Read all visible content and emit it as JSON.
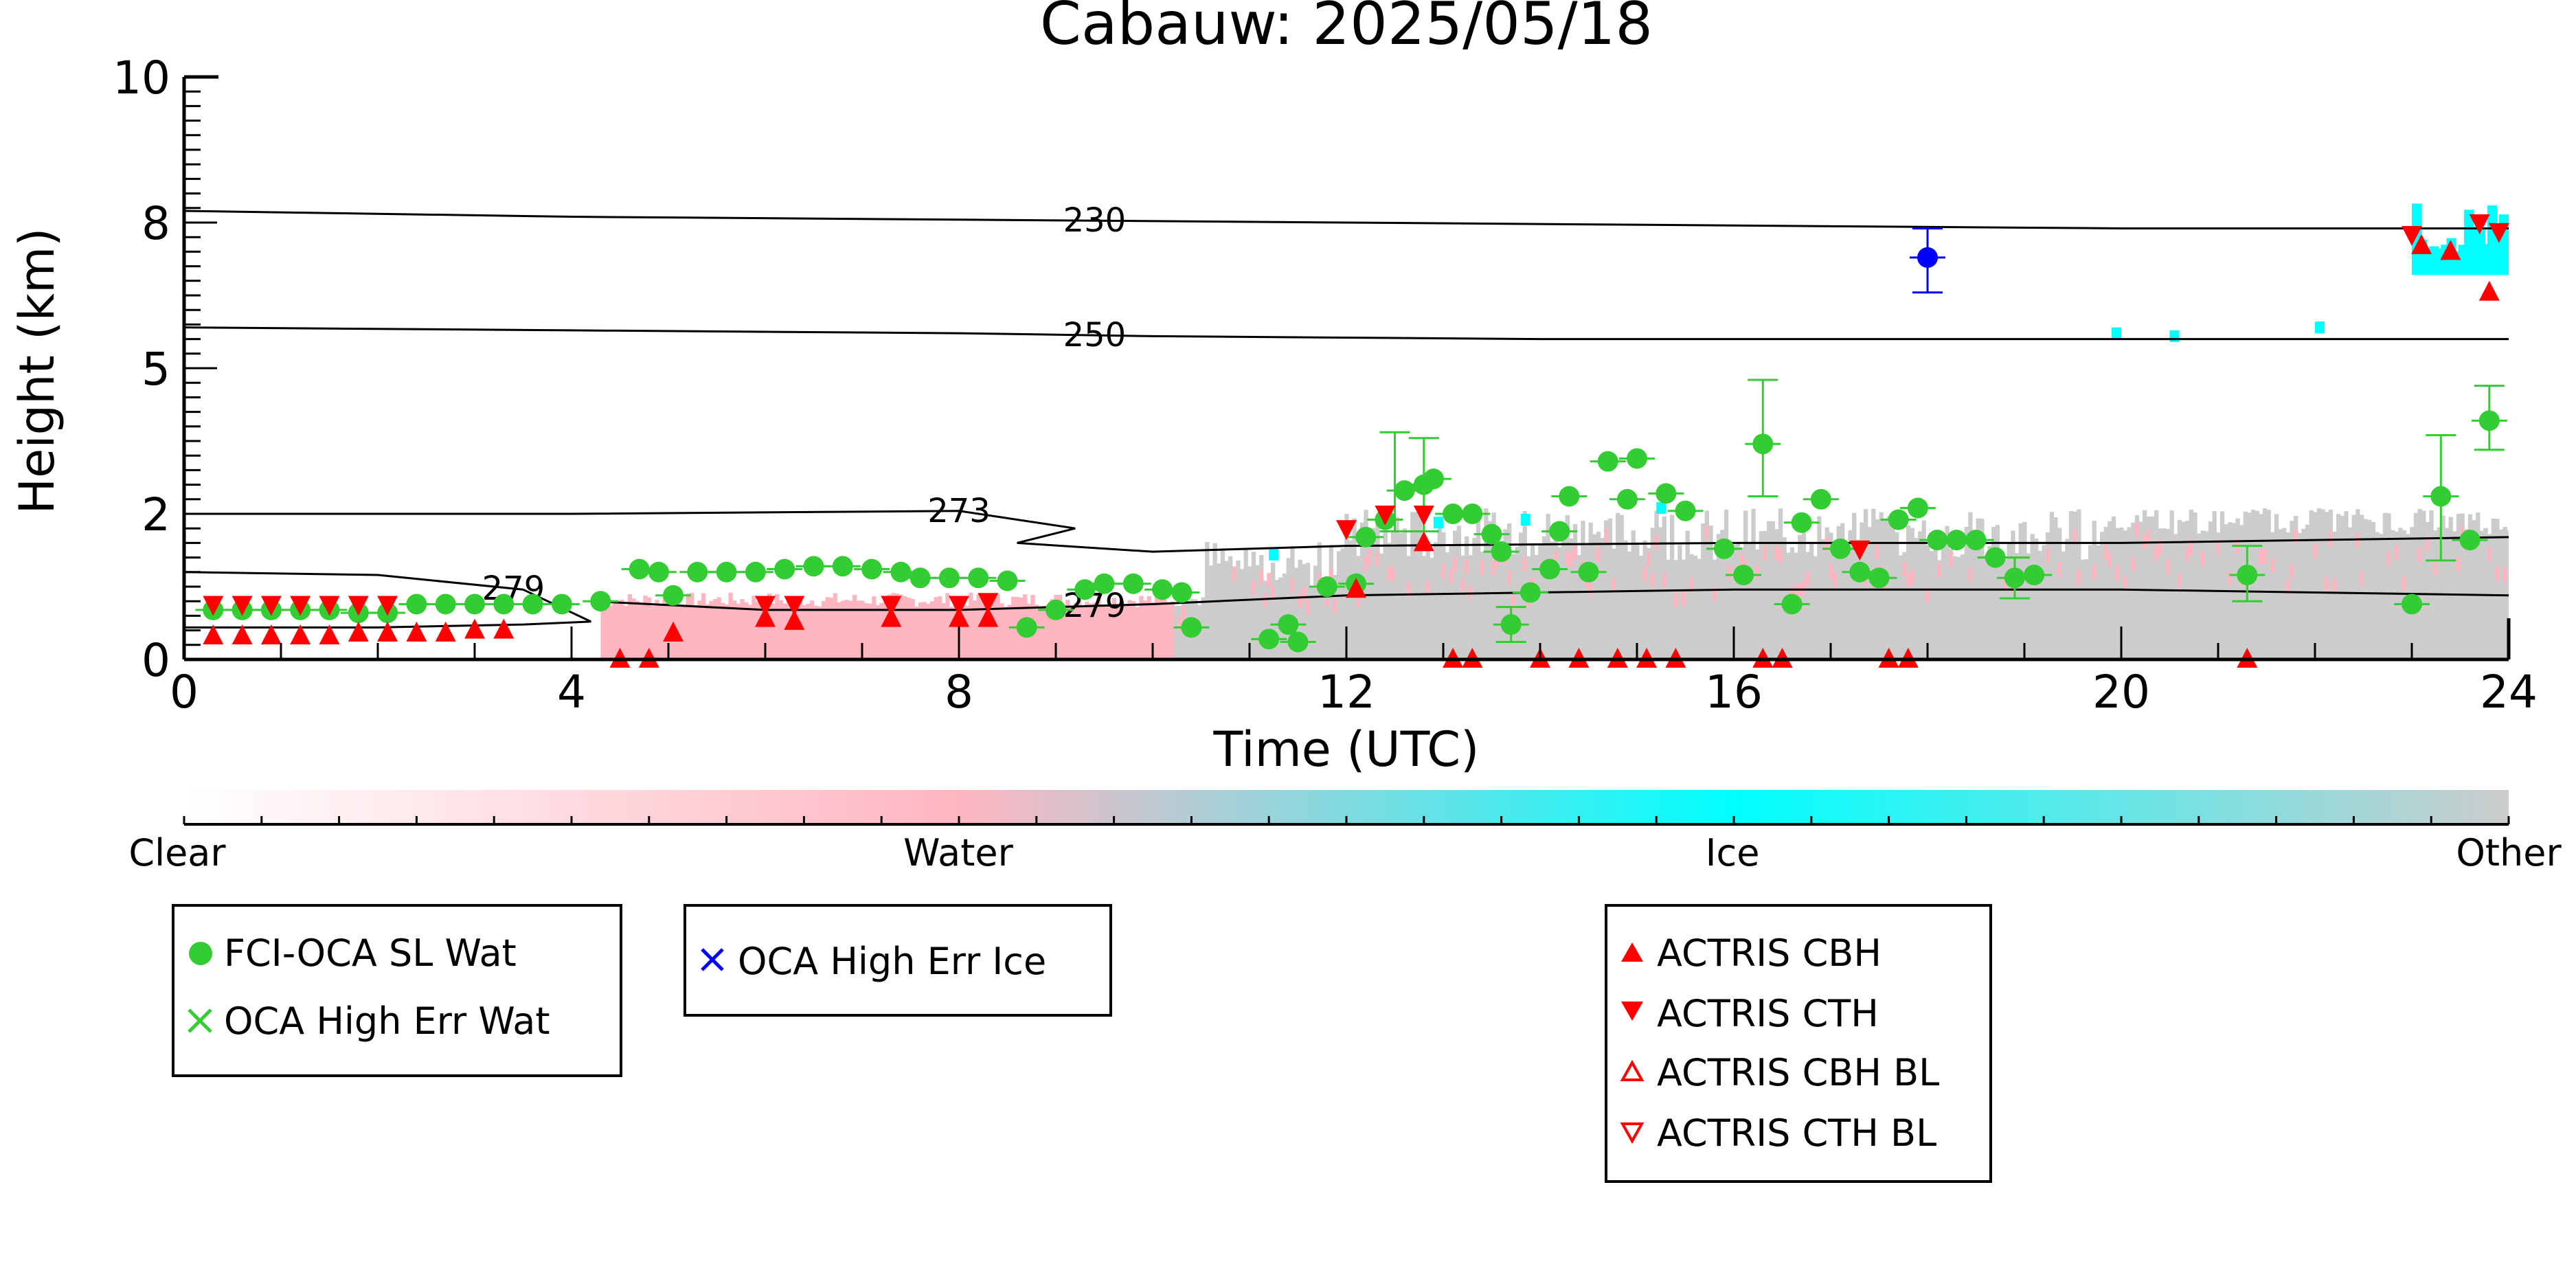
{
  "chart_data": {
    "type": "scatter",
    "title": "Cabauw: 2025/05/18",
    "xlabel": "Time (UTC)",
    "ylabel": "Height (km)",
    "xlim": [
      0,
      24
    ],
    "ylim": [
      0,
      10
    ],
    "x_ticks": [
      0,
      4,
      8,
      12,
      16,
      20,
      24
    ],
    "x_tick_labels": [
      "0",
      "4",
      "8",
      "12",
      "16",
      "20",
      "24"
    ],
    "y_ticks": [
      0,
      2.5,
      5,
      7.5,
      10
    ],
    "y_tick_labels": [
      "0",
      "2",
      "5",
      "8",
      "10"
    ],
    "background_field": "cloud classification shading (Clear / Water / Ice / Other)",
    "colorbar": {
      "labels": [
        "Clear",
        "Water",
        "Ice",
        "Other"
      ],
      "colors": [
        "#ffffff",
        "#ffb6c1",
        "#00ffff",
        "#cccccc"
      ]
    },
    "contours": [
      {
        "label": "230",
        "label_x": 9.4,
        "x": [
          0,
          4,
          8,
          12,
          16,
          20,
          24
        ],
        "y": [
          7.7,
          7.6,
          7.55,
          7.5,
          7.45,
          7.4,
          7.4
        ]
      },
      {
        "label": "250",
        "label_x": 9.4,
        "x": [
          0,
          4,
          8,
          10,
          14,
          18,
          24
        ],
        "y": [
          5.7,
          5.65,
          5.6,
          5.55,
          5.5,
          5.5,
          5.5
        ]
      },
      {
        "label": "273",
        "label_x": 8.0,
        "x": [
          0,
          4,
          8,
          9.2,
          8.6,
          10,
          12,
          16,
          20,
          24
        ],
        "y": [
          2.5,
          2.5,
          2.55,
          2.25,
          2.0,
          1.85,
          1.95,
          2.0,
          2.0,
          2.1
        ]
      },
      {
        "label": "279",
        "label_x": 3.4,
        "x": [
          0,
          2,
          3.5,
          4.2,
          3.5,
          2,
          0
        ],
        "y": [
          1.5,
          1.45,
          1.2,
          0.65,
          0.6,
          0.55,
          0.55
        ]
      },
      {
        "label": "279",
        "label_x": 9.4,
        "x": [
          4.2,
          6,
          8,
          10,
          12,
          16,
          20,
          24
        ],
        "y": [
          1.0,
          0.85,
          0.85,
          0.95,
          1.1,
          1.2,
          1.2,
          1.1
        ]
      }
    ],
    "series": [
      {
        "name": "FCI-OCA SL Wat",
        "marker": "circle",
        "color": "#33cc33",
        "points": [
          [
            0.3,
            0.85
          ],
          [
            0.6,
            0.85
          ],
          [
            0.9,
            0.85
          ],
          [
            1.2,
            0.85
          ],
          [
            1.5,
            0.85
          ],
          [
            1.8,
            0.8
          ],
          [
            2.1,
            0.8
          ],
          [
            2.4,
            0.95
          ],
          [
            2.7,
            0.95
          ],
          [
            3.0,
            0.95
          ],
          [
            3.3,
            0.95
          ],
          [
            3.6,
            0.95
          ],
          [
            3.9,
            0.95
          ],
          [
            4.3,
            1.0
          ],
          [
            4.7,
            1.55
          ],
          [
            4.9,
            1.5
          ],
          [
            5.05,
            1.1
          ],
          [
            5.3,
            1.5
          ],
          [
            5.6,
            1.5
          ],
          [
            5.9,
            1.5
          ],
          [
            6.2,
            1.55
          ],
          [
            6.5,
            1.6
          ],
          [
            6.8,
            1.6
          ],
          [
            7.1,
            1.55
          ],
          [
            7.4,
            1.5
          ],
          [
            7.6,
            1.4
          ],
          [
            7.9,
            1.4
          ],
          [
            8.2,
            1.4
          ],
          [
            8.5,
            1.35
          ],
          [
            8.7,
            0.55
          ],
          [
            9.0,
            0.85
          ],
          [
            9.3,
            1.2
          ],
          [
            9.5,
            1.3
          ],
          [
            9.8,
            1.3
          ],
          [
            10.1,
            1.2
          ],
          [
            10.3,
            1.15
          ],
          [
            10.4,
            0.55
          ],
          [
            11.2,
            0.35
          ],
          [
            11.4,
            0.6
          ],
          [
            11.5,
            0.3
          ],
          [
            11.8,
            1.25
          ],
          [
            12.1,
            1.3
          ],
          [
            12.2,
            2.1
          ],
          [
            12.4,
            2.4
          ],
          [
            12.6,
            2.9
          ],
          [
            12.8,
            3.0
          ],
          [
            12.9,
            3.1
          ],
          [
            13.1,
            2.5
          ],
          [
            13.3,
            2.5
          ],
          [
            13.5,
            2.15
          ],
          [
            13.6,
            1.85
          ],
          [
            13.7,
            0.6
          ],
          [
            13.9,
            1.15
          ],
          [
            14.1,
            1.55
          ],
          [
            14.2,
            2.2
          ],
          [
            14.3,
            2.8
          ],
          [
            14.5,
            1.5
          ],
          [
            14.7,
            3.4
          ],
          [
            14.9,
            2.75
          ],
          [
            15.0,
            3.45
          ],
          [
            15.3,
            2.85
          ],
          [
            15.5,
            2.55
          ],
          [
            15.9,
            1.9
          ],
          [
            16.1,
            1.45
          ],
          [
            16.3,
            3.7
          ],
          [
            16.6,
            0.95
          ],
          [
            16.7,
            2.35
          ],
          [
            16.9,
            2.75
          ],
          [
            17.1,
            1.9
          ],
          [
            17.3,
            1.5
          ],
          [
            17.5,
            1.4
          ],
          [
            17.7,
            2.4
          ],
          [
            17.9,
            2.6
          ],
          [
            18.1,
            2.05
          ],
          [
            18.3,
            2.05
          ],
          [
            18.5,
            2.05
          ],
          [
            18.7,
            1.75
          ],
          [
            18.9,
            1.4
          ],
          [
            19.1,
            1.45
          ],
          [
            21.3,
            1.45
          ],
          [
            23.0,
            0.95
          ],
          [
            23.3,
            2.8
          ],
          [
            23.6,
            2.05
          ],
          [
            23.8,
            4.1
          ]
        ],
        "error_bars": [
          {
            "x": 12.5,
            "low": 2.2,
            "high": 3.9
          },
          {
            "x": 12.8,
            "low": 2.2,
            "high": 3.8
          },
          {
            "x": 13.7,
            "low": 0.3,
            "high": 0.9
          },
          {
            "x": 16.3,
            "low": 2.8,
            "high": 4.8
          },
          {
            "x": 18.9,
            "low": 1.05,
            "high": 1.75
          },
          {
            "x": 21.3,
            "low": 1.0,
            "high": 1.95
          },
          {
            "x": 23.3,
            "low": 1.7,
            "high": 3.85
          },
          {
            "x": 23.8,
            "low": 3.6,
            "high": 4.7
          }
        ]
      },
      {
        "name": "OCA High Err Wat",
        "marker": "x",
        "color": "#33cc33",
        "points": []
      },
      {
        "name": "OCA High Err Ice",
        "marker": "x",
        "color": "#0000ff",
        "points": []
      },
      {
        "name": "OCA High Err Ice (point)",
        "marker": "circle",
        "color": "#0000ff",
        "points": [
          [
            18.0,
            6.9
          ]
        ],
        "error_bars": [
          {
            "x": 18.0,
            "low": 6.3,
            "high": 7.4
          }
        ]
      },
      {
        "name": "ACTRIS CBH",
        "marker": "triangle-up",
        "color": "#ff0000",
        "points": [
          [
            0.3,
            0.4
          ],
          [
            0.6,
            0.4
          ],
          [
            0.9,
            0.4
          ],
          [
            1.2,
            0.4
          ],
          [
            1.5,
            0.4
          ],
          [
            1.8,
            0.45
          ],
          [
            2.1,
            0.45
          ],
          [
            2.4,
            0.45
          ],
          [
            2.7,
            0.45
          ],
          [
            3.0,
            0.5
          ],
          [
            3.3,
            0.5
          ],
          [
            4.5,
            0.0
          ],
          [
            4.8,
            0.0
          ],
          [
            5.05,
            0.45
          ],
          [
            6.0,
            0.7
          ],
          [
            6.3,
            0.65
          ],
          [
            7.3,
            0.7
          ],
          [
            8.0,
            0.7
          ],
          [
            8.3,
            0.7
          ],
          [
            12.1,
            1.2
          ],
          [
            12.8,
            2.0
          ],
          [
            13.1,
            0.0
          ],
          [
            13.3,
            0.0
          ],
          [
            14.0,
            0.0
          ],
          [
            14.4,
            0.0
          ],
          [
            14.8,
            0.0
          ],
          [
            15.1,
            0.0
          ],
          [
            15.4,
            0.0
          ],
          [
            16.3,
            0.0
          ],
          [
            16.5,
            0.0
          ],
          [
            17.6,
            0.0
          ],
          [
            17.8,
            0.0
          ],
          [
            21.3,
            0.0
          ],
          [
            23.1,
            7.1
          ],
          [
            23.4,
            7.0
          ],
          [
            23.8,
            6.3
          ]
        ]
      },
      {
        "name": "ACTRIS CTH",
        "marker": "triangle-down",
        "color": "#ff0000",
        "points": [
          [
            0.3,
            0.95
          ],
          [
            0.6,
            0.95
          ],
          [
            0.9,
            0.95
          ],
          [
            1.2,
            0.95
          ],
          [
            1.5,
            0.95
          ],
          [
            1.8,
            0.95
          ],
          [
            2.1,
            0.95
          ],
          [
            6.0,
            0.95
          ],
          [
            6.3,
            0.95
          ],
          [
            7.3,
            0.95
          ],
          [
            8.0,
            0.95
          ],
          [
            8.3,
            1.0
          ],
          [
            12.0,
            2.25
          ],
          [
            12.4,
            2.5
          ],
          [
            12.8,
            2.5
          ],
          [
            17.3,
            1.9
          ],
          [
            23.0,
            7.3
          ],
          [
            23.7,
            7.5
          ],
          [
            23.9,
            7.35
          ]
        ]
      },
      {
        "name": "ACTRIS CBH BL",
        "marker": "triangle-up-open",
        "color": "#ff0000",
        "points": []
      },
      {
        "name": "ACTRIS CTH BL",
        "marker": "triangle-down-open",
        "color": "#ff0000",
        "points": []
      }
    ],
    "legends": [
      {
        "entries": [
          "FCI-OCA SL Wat",
          "OCA High Err Wat"
        ],
        "markers": [
          "circle",
          "x"
        ],
        "colors": [
          "#33cc33",
          "#33cc33"
        ],
        "placement": "bottom-left"
      },
      {
        "entries": [
          "OCA High Err Ice"
        ],
        "markers": [
          "x"
        ],
        "colors": [
          "#0000ff"
        ],
        "placement": "bottom-center-left"
      },
      {
        "entries": [
          "ACTRIS CBH",
          "ACTRIS CTH",
          "ACTRIS CBH BL",
          "ACTRIS CTH BL"
        ],
        "markers": [
          "triangle-up",
          "triangle-down",
          "triangle-up-open",
          "triangle-down-open"
        ],
        "colors": [
          "#ff0000",
          "#ff0000",
          "#ff0000",
          "#ff0000"
        ],
        "placement": "bottom-center-right"
      }
    ],
    "grid": false
  }
}
